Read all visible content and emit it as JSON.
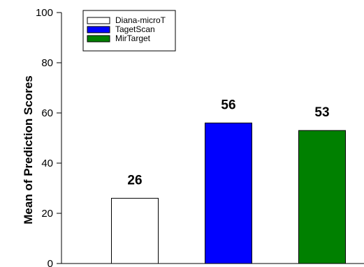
{
  "chart_data": {
    "type": "bar",
    "title": "",
    "xlabel": "",
    "ylabel": "Mean of Prediction Scores",
    "ylim": [
      0,
      100
    ],
    "yticks": [
      0,
      20,
      40,
      60,
      80,
      100
    ],
    "grid": false,
    "legend_position": "top-left",
    "categories": [
      "Diana-microT",
      "TagetScan",
      "MirTarget"
    ],
    "values": [
      26,
      56,
      53
    ],
    "colors": [
      "#ffffff",
      "#0000ff",
      "#008000"
    ],
    "data_labels": [
      "26",
      "56",
      "53"
    ],
    "legend": [
      {
        "label": "Diana-microT",
        "color": "#ffffff"
      },
      {
        "label": "TagetScan",
        "color": "#0000ff"
      },
      {
        "label": "MirTarget",
        "color": "#008000"
      }
    ]
  }
}
